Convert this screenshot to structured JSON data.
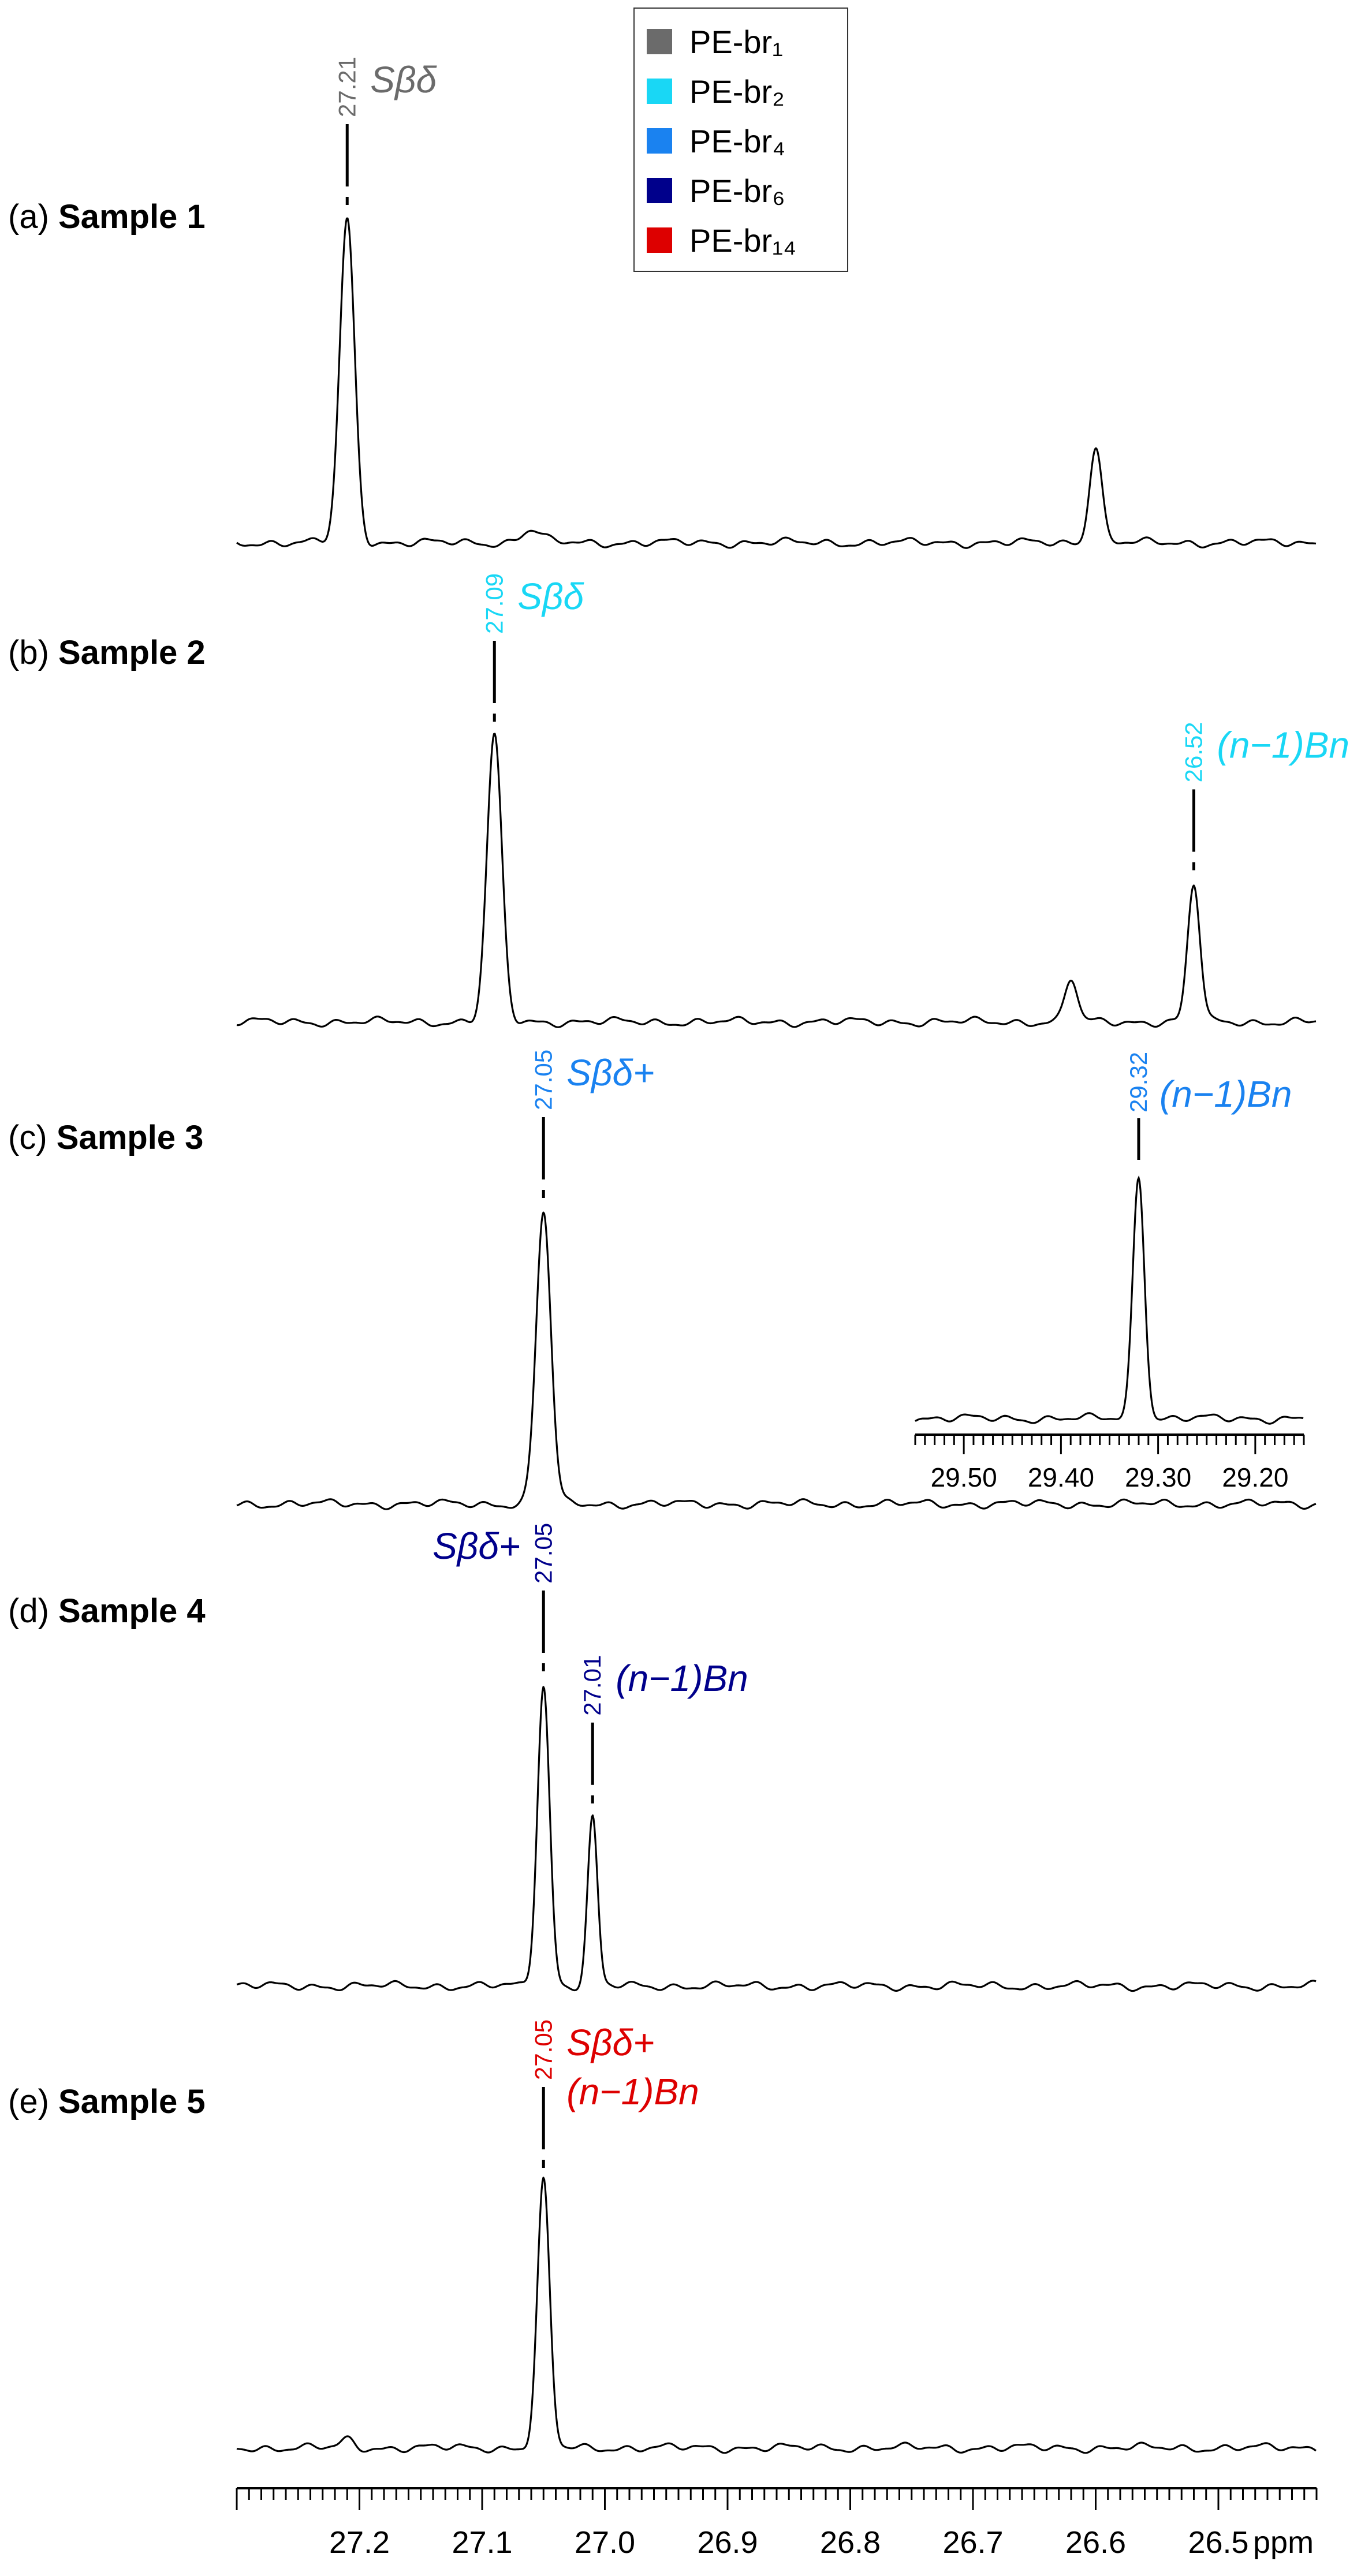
{
  "chart_data": {
    "type": "line",
    "x_unit": "ppm",
    "xlim": [
      27.3,
      26.42
    ],
    "x_axis_reversed": true,
    "x_ticks": [
      27.2,
      27.1,
      27.0,
      26.9,
      26.8,
      26.7,
      26.6,
      26.5
    ],
    "x_tick_labels": [
      "27.2",
      "27.1",
      "27.0",
      "26.9",
      "26.8",
      "26.7",
      "26.6",
      "26.5"
    ],
    "legend": {
      "placement": "top-center",
      "entries": [
        {
          "label": "PE-br₁",
          "color": "#6b6b6b"
        },
        {
          "label": "PE-br₂",
          "color": "#19d7f5"
        },
        {
          "label": "PE-br₄",
          "color": "#1a82f0"
        },
        {
          "label": "PE-br₆",
          "color": "#00008b"
        },
        {
          "label": "PE-br₁₄",
          "color": "#dd0000"
        }
      ]
    },
    "spectra": [
      {
        "label_prefix": "(a)",
        "label_name": "Sample 1",
        "color": "#6b6b6b",
        "peaks": [
          {
            "ppm": 27.21,
            "height": 1.0,
            "width": 0.006
          },
          {
            "ppm": 27.06,
            "height": 0.04,
            "width": 0.008
          },
          {
            "ppm": 26.6,
            "height": 0.3,
            "width": 0.005
          }
        ],
        "annotations": [
          {
            "ppm": 27.21,
            "value": "27.21",
            "label": "Sβδ",
            "side": "right"
          }
        ]
      },
      {
        "label_prefix": "(b)",
        "label_name": "Sample 2",
        "color": "#19d7f5",
        "peaks": [
          {
            "ppm": 27.09,
            "height": 1.0,
            "width": 0.006
          },
          {
            "ppm": 26.62,
            "height": 0.15,
            "width": 0.005
          },
          {
            "ppm": 26.52,
            "height": 0.48,
            "width": 0.005
          }
        ],
        "annotations": [
          {
            "ppm": 27.09,
            "value": "27.09",
            "label": "Sβδ",
            "side": "right"
          },
          {
            "ppm": 26.52,
            "value": "26.52",
            "label": "(n−1)Bn",
            "side": "right"
          }
        ]
      },
      {
        "label_prefix": "(c)",
        "label_name": "Sample 3",
        "color": "#1a82f0",
        "peaks": [
          {
            "ppm": 27.05,
            "height": 1.0,
            "width": 0.006
          }
        ],
        "annotations": [
          {
            "ppm": 27.05,
            "value": "27.05",
            "label": "Sβδ+",
            "side": "right"
          }
        ],
        "inset": {
          "xlim": [
            29.55,
            29.15
          ],
          "x_ticks": [
            29.5,
            29.4,
            29.3,
            29.2
          ],
          "x_tick_labels": [
            "29.50",
            "29.40",
            "29.30",
            "29.20"
          ],
          "peaks": [
            {
              "ppm": 29.32,
              "height": 1.0,
              "width": 0.006
            }
          ],
          "annotation": {
            "ppm": 29.32,
            "value": "29.32",
            "label": "(n−1)Bn"
          }
        }
      },
      {
        "label_prefix": "(d)",
        "label_name": "Sample 4",
        "color": "#00008b",
        "peaks": [
          {
            "ppm": 27.05,
            "height": 1.0,
            "width": 0.005
          },
          {
            "ppm": 27.01,
            "height": 0.56,
            "width": 0.004
          }
        ],
        "annotations": [
          {
            "ppm": 27.05,
            "value": "27.05",
            "label": "Sβδ+",
            "side": "left"
          },
          {
            "ppm": 27.01,
            "value": "27.01",
            "label": "(n−1)Bn",
            "side": "right"
          }
        ]
      },
      {
        "label_prefix": "(e)",
        "label_name": "Sample 5",
        "color": "#dd0000",
        "peaks": [
          {
            "ppm": 27.05,
            "height": 1.0,
            "width": 0.005
          },
          {
            "ppm": 27.21,
            "height": 0.03,
            "width": 0.005
          }
        ],
        "annotations": [
          {
            "ppm": 27.05,
            "value": "27.05",
            "label": "Sβδ+",
            "label2": "(n−1)Bn",
            "side": "right"
          }
        ]
      }
    ]
  }
}
